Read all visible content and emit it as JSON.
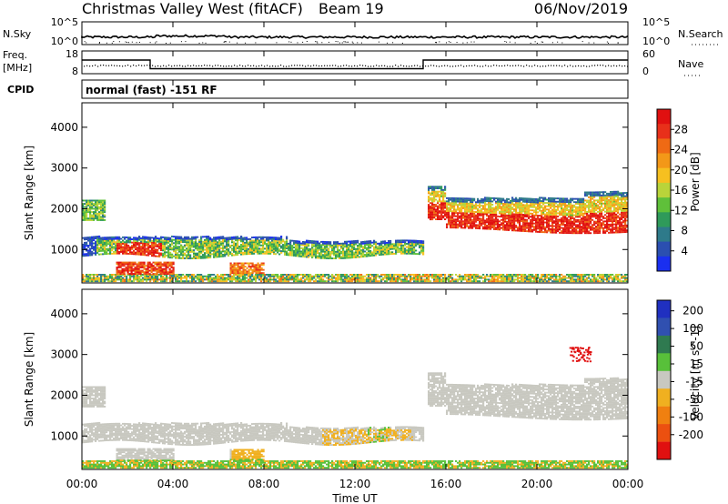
{
  "header": {
    "title": "Christmas Valley West (fitACF)",
    "beam": "Beam 19",
    "date": "06/Nov/2019"
  },
  "panels": {
    "nsky": {
      "left_label": "N.Sky",
      "right_label": "N.Search",
      "left_ticks": [
        "10^5",
        "10^0"
      ],
      "right_ticks": [
        "10^5",
        "10^0"
      ]
    },
    "freq": {
      "left_label_top": "Freq.",
      "left_label_bottom": "[MHz]",
      "right_label": "Nave",
      "left_ticks": [
        "18",
        "8"
      ],
      "right_ticks": [
        "60",
        "0"
      ],
      "cpid_label": "CPID",
      "cpid_text": "normal (fast) -151 RF",
      "freq_steps_mhz": [
        {
          "from_hour": 0,
          "to_hour": 3,
          "value": 14.0
        },
        {
          "from_hour": 3,
          "to_hour": 15,
          "value": 10.2
        },
        {
          "from_hour": 15,
          "to_hour": 24,
          "value": 14.0
        }
      ]
    }
  },
  "time_axis": {
    "label": "Time UT",
    "ticks": [
      "00:00",
      "04:00",
      "08:00",
      "12:00",
      "16:00",
      "20:00",
      "00:00"
    ]
  },
  "chart_data": [
    {
      "type": "heatmap",
      "name": "power",
      "ylabel": "Slant Range [km]",
      "y_ticks": [
        "1000",
        "2000",
        "3000",
        "4000"
      ],
      "ylim_km": [
        180,
        4600
      ],
      "xlim_hours": [
        0,
        24
      ],
      "colorbar": {
        "label": "Power [dB]",
        "ticks": [
          "4",
          "8",
          "12",
          "16",
          "20",
          "24",
          "28"
        ],
        "range": [
          0,
          32
        ],
        "colors": [
          "#1a2ff0",
          "#2b4fb0",
          "#2e7a8a",
          "#2f9a5a",
          "#5fc03a",
          "#b9d43a",
          "#f6c020",
          "#f39818",
          "#ef6a14",
          "#e8301a",
          "#e01010"
        ]
      },
      "regions": [
        {
          "desc": "E-region band",
          "t0": 0.0,
          "t1": 24.0,
          "r0": 200,
          "r1": 450,
          "level": 0.4
        },
        {
          "desc": "early band",
          "t0": 0.0,
          "t1": 15.0,
          "r0": 800,
          "r1": 1300,
          "level": 0.55
        },
        {
          "desc": "late band",
          "t0": 15.2,
          "t1": 24.0,
          "r0": 1500,
          "r1": 2300,
          "level": 0.7
        }
      ]
    },
    {
      "type": "heatmap",
      "name": "velocity",
      "ylabel": "Slant Range [km]",
      "y_ticks": [
        "1000",
        "2000",
        "3000",
        "4000"
      ],
      "ylim_km": [
        180,
        4600
      ],
      "xlim_hours": [
        0,
        24
      ],
      "colorbar": {
        "label": "Velocity [m s^-1]",
        "ticks": [
          "200",
          "100",
          "50",
          "15",
          "-15",
          "-50",
          "-100",
          "-200"
        ],
        "colors": [
          "#2030c0",
          "#3050b0",
          "#2f7a50",
          "#58c03a",
          "#c8c8c0",
          "#f0b020",
          "#f08010",
          "#ec5010",
          "#e01010"
        ]
      }
    }
  ]
}
